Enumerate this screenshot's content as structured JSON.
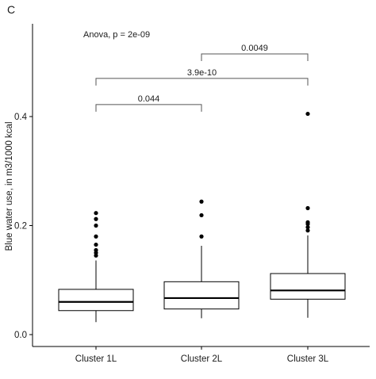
{
  "chart_data": {
    "type": "boxplot",
    "panel_label": "C",
    "ylabel": "Blue water use, in m3/1000 kcal",
    "xlabel": "",
    "ylim": [
      0,
      0.55
    ],
    "yticks": [
      0.0,
      0.2,
      0.4
    ],
    "ytick_labels": [
      "0.0",
      "0.2",
      "0.4"
    ],
    "grid": false,
    "categories": [
      "Cluster 1L",
      "Cluster 2L",
      "Cluster 3L"
    ],
    "boxes": [
      {
        "category": "Cluster 1L",
        "whisker_low": 0.023,
        "q1": 0.044,
        "median": 0.06,
        "q3": 0.083,
        "whisker_high": 0.136,
        "outliers": [
          0.145,
          0.15,
          0.155,
          0.165,
          0.18,
          0.2,
          0.212,
          0.223
        ]
      },
      {
        "category": "Cluster 2L",
        "whisker_low": 0.03,
        "q1": 0.047,
        "median": 0.067,
        "q3": 0.097,
        "whisker_high": 0.163,
        "outliers": [
          0.18,
          0.219,
          0.244
        ]
      },
      {
        "category": "Cluster 3L",
        "whisker_low": 0.031,
        "q1": 0.065,
        "median": 0.081,
        "q3": 0.112,
        "whisker_high": 0.182,
        "outliers": [
          0.191,
          0.197,
          0.203,
          0.206,
          0.232,
          0.405
        ]
      }
    ],
    "annotations": {
      "test": "Anova, p = 2e-09",
      "brackets": [
        {
          "from": "Cluster 2L",
          "to": "Cluster 3L",
          "y": 0.515,
          "label": "0.0049"
        },
        {
          "from": "Cluster 1L",
          "to": "Cluster 3L",
          "y": 0.47,
          "label": "3.9e-10"
        },
        {
          "from": "Cluster 1L",
          "to": "Cluster 2L",
          "y": 0.422,
          "label": "0.044"
        }
      ]
    },
    "colors": {
      "box_fill": "#ffffff",
      "stroke": "#000000"
    }
  }
}
